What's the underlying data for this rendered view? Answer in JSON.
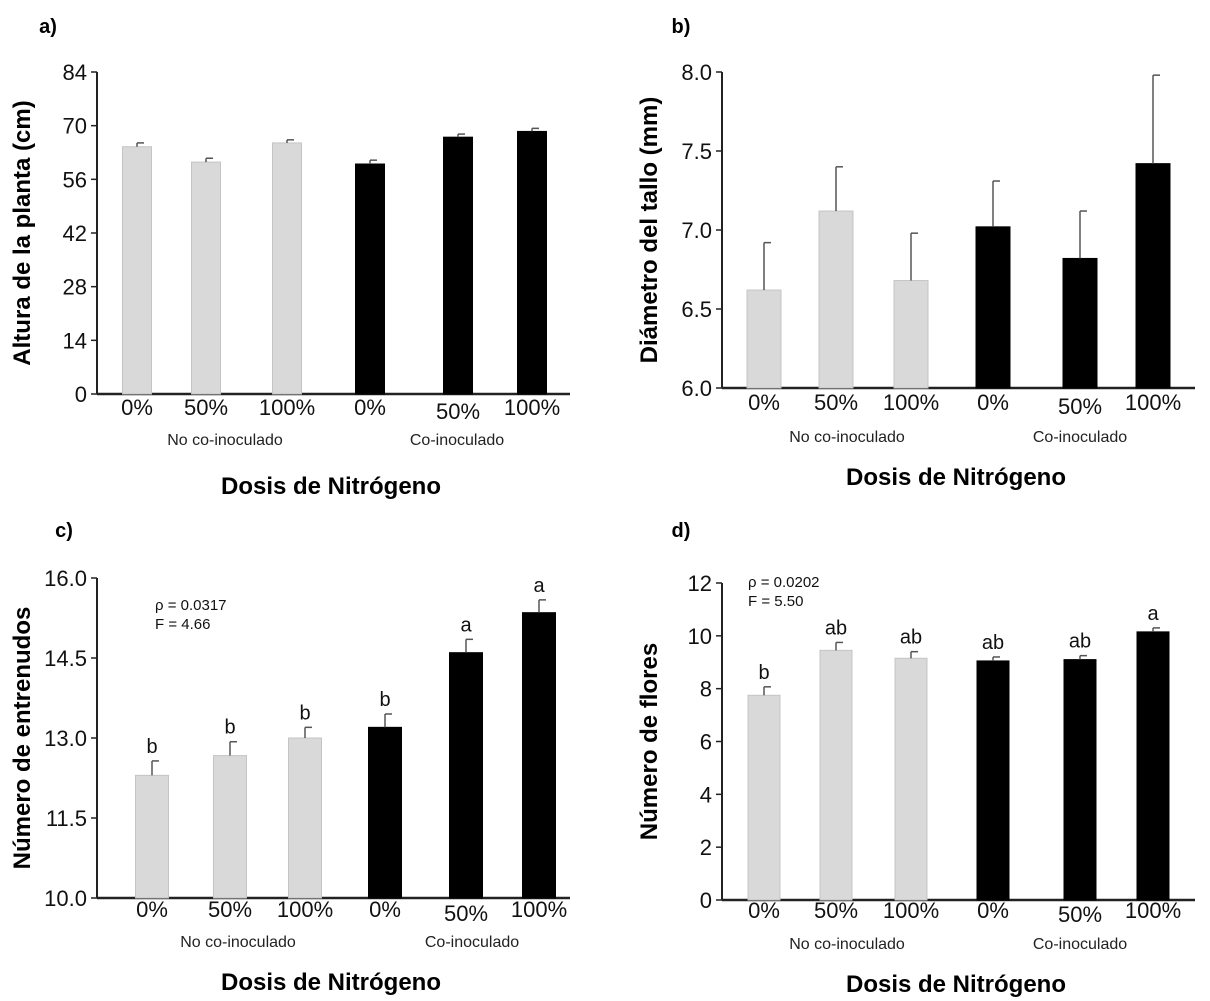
{
  "chart_data": [
    {
      "panel_label": "a)",
      "type": "bar",
      "ylabel": "Altura de la planta (cm)",
      "xlabel": "Dosis de Nitrógeno",
      "ylim": [
        0,
        84
      ],
      "yticks": [
        "0",
        "14",
        "28",
        "42",
        "56",
        "70",
        "84"
      ],
      "categories": [
        "0%",
        "50%",
        "100%",
        "0%",
        "50%",
        "100%"
      ],
      "groups": [
        "No co-inoculado",
        "Co-inoculado"
      ],
      "values": [
        64.5,
        60.5,
        65.5,
        60.0,
        67.0,
        68.5
      ],
      "errors": [
        1.0,
        1.0,
        0.8,
        1.0,
        0.8,
        0.8
      ],
      "colors": [
        "#d9d9d9",
        "#d9d9d9",
        "#d9d9d9",
        "#000000",
        "#000000",
        "#000000"
      ],
      "letters": [],
      "stats": []
    },
    {
      "panel_label": "b)",
      "type": "bar",
      "ylabel": "Diámetro del tallo (mm)",
      "xlabel": "Dosis de Nitrógeno",
      "ylim": [
        6.0,
        8.0
      ],
      "yticks": [
        "6.0",
        "6.5",
        "7.0",
        "7.5",
        "8.0"
      ],
      "categories": [
        "0%",
        "50%",
        "100%",
        "0%",
        "50%",
        "100%"
      ],
      "groups": [
        "No co-inoculado",
        "Co-inoculado"
      ],
      "values": [
        6.62,
        7.12,
        6.68,
        7.02,
        6.82,
        7.42
      ],
      "errors": [
        0.3,
        0.28,
        0.3,
        0.29,
        0.3,
        0.56
      ],
      "colors": [
        "#d9d9d9",
        "#d9d9d9",
        "#d9d9d9",
        "#000000",
        "#000000",
        "#000000"
      ],
      "letters": [],
      "stats": []
    },
    {
      "panel_label": "c)",
      "type": "bar",
      "ylabel": "Número de entrenudos",
      "xlabel": "Dosis de Nitrógeno",
      "ylim": [
        10.0,
        16.0
      ],
      "yticks": [
        "10.0",
        "11.5",
        "13.0",
        "14.5",
        "16.0"
      ],
      "categories": [
        "0%",
        "50%",
        "100%",
        "0%",
        "50%",
        "100%"
      ],
      "groups": [
        "No co-inoculado",
        "Co-inoculado"
      ],
      "values": [
        12.3,
        12.67,
        13.0,
        13.2,
        14.6,
        15.35
      ],
      "errors": [
        0.27,
        0.26,
        0.2,
        0.25,
        0.25,
        0.24
      ],
      "colors": [
        "#d9d9d9",
        "#d9d9d9",
        "#d9d9d9",
        "#000000",
        "#000000",
        "#000000"
      ],
      "letters": [
        "b",
        "b",
        "b",
        "b",
        "a",
        "a"
      ],
      "stats": [
        "ρ = 0.0317",
        "F = 4.66"
      ]
    },
    {
      "panel_label": "d)",
      "type": "bar",
      "ylabel": "Número de flores",
      "xlabel": "Dosis de Nitrógeno",
      "ylim": [
        0,
        12
      ],
      "yticks": [
        "0",
        "2",
        "4",
        "6",
        "8",
        "10",
        "12"
      ],
      "categories": [
        "0%",
        "50%",
        "100%",
        "0%",
        "50%",
        "100%"
      ],
      "groups": [
        "No co-inoculado",
        "Co-inoculado"
      ],
      "values": [
        7.75,
        9.45,
        9.15,
        9.05,
        9.1,
        10.15
      ],
      "errors": [
        0.32,
        0.3,
        0.25,
        0.15,
        0.15,
        0.15
      ],
      "colors": [
        "#d9d9d9",
        "#d9d9d9",
        "#d9d9d9",
        "#000000",
        "#000000",
        "#000000"
      ],
      "letters": [
        "b",
        "ab",
        "ab",
        "ab",
        "ab",
        "a"
      ],
      "stats": [
        "ρ = 0.0202",
        "F = 5.50"
      ]
    }
  ]
}
